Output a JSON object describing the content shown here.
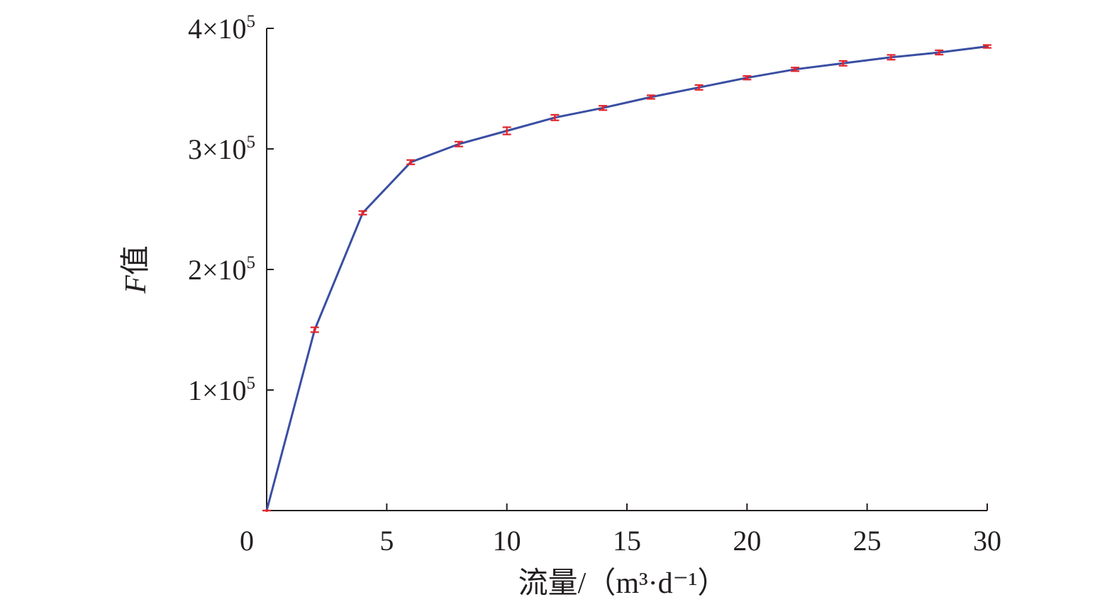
{
  "chart_data": {
    "type": "line",
    "xlabel_main": "流量/",
    "xlabel_unit": "（m³·d⁻¹）",
    "ylabel_italic": "F",
    "ylabel_rest": "值",
    "xlim": [
      0,
      30
    ],
    "ylim": [
      0,
      400000
    ],
    "x_ticks": [
      {
        "value": 0,
        "label": "0"
      },
      {
        "value": 5,
        "label": "5"
      },
      {
        "value": 10,
        "label": "10"
      },
      {
        "value": 15,
        "label": "15"
      },
      {
        "value": 20,
        "label": "20"
      },
      {
        "value": 25,
        "label": "25"
      },
      {
        "value": 30,
        "label": "30"
      }
    ],
    "y_ticks": [
      {
        "value": 100000,
        "mantissa": "1×10",
        "exponent": "5"
      },
      {
        "value": 200000,
        "mantissa": "2×10",
        "exponent": "5"
      },
      {
        "value": 300000,
        "mantissa": "3×10",
        "exponent": "5"
      },
      {
        "value": 400000,
        "mantissa": "4×10",
        "exponent": "5"
      }
    ],
    "series": [
      {
        "color": "#3a4fa3",
        "error_color": "#e0242c",
        "x": [
          0,
          2,
          4,
          6,
          8,
          10,
          12,
          14,
          16,
          18,
          20,
          22,
          24,
          26,
          28,
          30
        ],
        "y": [
          0,
          150000,
          247000,
          289000,
          304000,
          315000,
          326000,
          334000,
          343000,
          351000,
          359000,
          366000,
          371000,
          376000,
          380000,
          385000
        ],
        "error": [
          0,
          2000,
          1500,
          1800,
          2000,
          3000,
          2300,
          1800,
          1500,
          2000,
          1500,
          1500,
          2000,
          2000,
          1800,
          1200
        ]
      }
    ]
  }
}
